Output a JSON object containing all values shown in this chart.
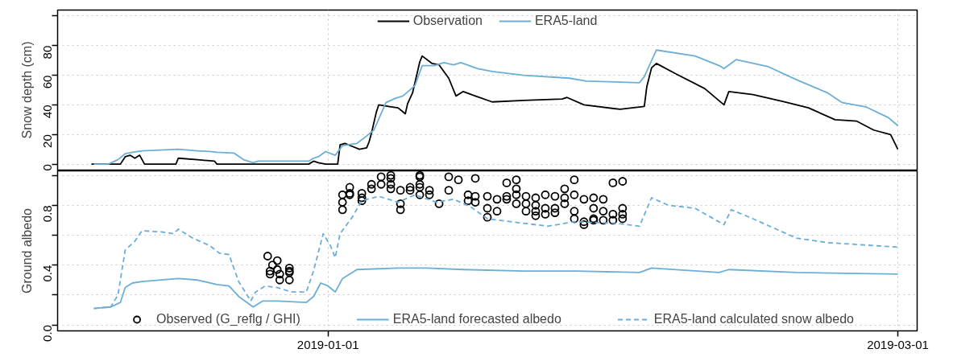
{
  "chart_data": [
    {
      "type": "line",
      "ylabel": "Snow depth (cm)",
      "xlim": [
        "2018-12-04",
        "2019-03-03"
      ],
      "xticks": [
        {
          "value": "2019-01-01",
          "label": null
        },
        {
          "value": "2019-03-01",
          "label": null
        }
      ],
      "ylim": [
        -4,
        104
      ],
      "yticks": [
        0,
        20,
        40,
        60,
        80,
        {
          "value": 100,
          "label": null
        }
      ],
      "grid": true,
      "legend": "top",
      "tick_labels": "y",
      "series": [
        {
          "name": "Observation",
          "color": "#000000",
          "x": [
            "2018-12-07T12:00",
            "2018-12-10T12:00",
            "2018-12-11",
            "2018-12-11T12:00",
            "2018-12-12",
            "2018-12-12T12:00",
            "2018-12-12T18:00",
            "2018-12-13",
            "2018-12-16T06:00",
            "2018-12-16T12:00",
            "2018-12-18T12:00",
            "2018-12-20T06:00",
            "2018-12-20T12:00",
            "2018-12-30",
            "2018-12-30T12:00",
            "2018-12-31",
            "2018-12-31T18:00",
            "2019-01-02",
            "2019-01-02T06:00",
            "2019-01-02T18:00",
            "2019-01-03T12:00",
            "2019-01-04T06:00",
            "2019-01-05",
            "2019-01-05T06:00",
            "2019-01-05T12:00",
            "2019-01-06",
            "2019-01-06T06:00",
            "2019-01-07T06:00",
            "2019-01-08T06:00",
            "2019-01-09",
            "2019-01-09T06:00",
            "2019-01-09T18:00",
            "2019-01-10T12:00",
            "2019-01-10T18:00",
            "2019-01-11T18:00",
            "2019-01-12T12:00",
            "2019-01-13T12:00",
            "2019-01-14T06:00",
            "2019-01-15",
            "2019-01-16T06:00",
            "2019-01-18",
            "2019-01-21T06:00",
            "2019-01-25T06:00",
            "2019-01-25T18:00",
            "2019-01-27T12:00",
            "2019-01-31T06:00",
            "2019-02-02T18:00",
            "2019-02-03",
            "2019-02-03T12:00",
            "2019-02-04",
            "2019-02-06",
            "2019-02-09",
            "2019-02-11",
            "2019-02-11T12:00",
            "2019-02-14",
            "2019-02-17T06:00",
            "2019-02-19T18:00",
            "2019-02-22T12:00",
            "2019-02-24T18:00",
            "2019-02-26T12:00",
            "2019-02-28T06:00",
            "2019-03-01"
          ],
          "values": [
            0,
            0,
            5,
            6,
            4,
            6,
            3,
            0,
            0,
            4,
            3,
            2,
            0,
            0,
            2,
            1,
            0,
            0,
            13,
            14,
            12,
            10,
            11,
            15,
            21,
            35,
            40,
            39,
            38,
            34,
            41,
            48,
            69,
            73,
            68,
            67,
            58,
            46,
            49,
            46,
            42,
            43,
            44,
            45,
            40,
            37,
            39,
            52,
            65,
            68,
            61,
            51,
            40,
            49,
            47,
            42,
            38,
            30,
            29,
            23,
            20,
            10
          ]
        },
        {
          "name": "ERA5-land",
          "color": "#6baed6",
          "x": [
            "2018-12-07T18:00",
            "2018-12-09T06:00",
            "2018-12-10T06:00",
            "2018-12-11",
            "2018-12-11T18:00",
            "2018-12-12T18:00",
            "2018-12-16T12:00",
            "2018-12-18T12:00",
            "2018-12-19T18:00",
            "2018-12-20T12:00",
            "2018-12-22T06:00",
            "2018-12-23T06:00",
            "2018-12-24T06:00",
            "2018-12-24T18:00",
            "2018-12-26T18:00",
            "2018-12-30",
            "2018-12-30T12:00",
            "2018-12-31",
            "2018-12-31T18:00",
            "2019-01-01T18:00",
            "2019-01-02T12:00",
            "2019-01-04",
            "2019-01-05",
            "2019-01-05T18:00",
            "2019-01-07",
            "2019-01-08",
            "2019-01-08T18:00",
            "2019-01-10",
            "2019-01-10T18:00",
            "2019-01-12",
            "2019-01-13",
            "2019-01-14",
            "2019-01-14T18:00",
            "2019-01-16T12:00",
            "2019-01-18",
            "2019-01-21T06:00",
            "2019-01-26",
            "2019-01-27T18:00",
            "2019-02-02T06:00",
            "2019-02-02T18:00",
            "2019-02-04",
            "2019-02-08",
            "2019-02-10T12:00",
            "2019-02-11",
            "2019-02-12T06:00",
            "2019-02-15T12:00",
            "2019-02-18T12:00",
            "2019-02-21T18:00",
            "2019-02-23T06:00",
            "2019-02-25T18:00",
            "2019-02-28",
            "2019-03-01"
          ],
          "values": [
            0,
            0,
            3,
            7,
            8,
            9,
            10,
            9,
            8.5,
            8,
            7.5,
            3,
            1,
            2,
            2,
            2,
            4,
            5,
            8.5,
            6,
            12.5,
            14,
            19,
            23,
            41.5,
            44.5,
            46,
            53,
            66.5,
            66.5,
            68.5,
            67,
            68.5,
            64.5,
            62.5,
            60,
            58,
            56,
            55,
            59,
            77,
            73,
            66.5,
            64.5,
            70.5,
            66,
            57,
            48,
            41.5,
            38.5,
            31.5,
            26
          ]
        }
      ]
    },
    {
      "type": "line",
      "ylabel": "Ground albedo",
      "xlim": [
        "2018-12-04",
        "2019-03-03"
      ],
      "xticks": [
        "2019-01-01",
        "2019-03-01"
      ],
      "ylim": [
        -0.04,
        1.03
      ],
      "yticks": [
        {
          "value": 0,
          "label": "0.0"
        },
        {
          "value": 0.2,
          "label": null
        },
        {
          "value": 0.4,
          "label": "0.4"
        },
        {
          "value": 0.6,
          "label": null
        },
        {
          "value": 0.8,
          "label": "0.8"
        },
        {
          "value": 1.0,
          "label": null
        }
      ],
      "grid": true,
      "legend": "bottom",
      "series": [
        {
          "name": "Observed (G_reflg / GHI)",
          "type": "scatter",
          "marker": "circle",
          "color": "#000000",
          "x": [
            "2018-12-25T18:00",
            "2018-12-26T06:00",
            "2018-12-26",
            "2018-12-26",
            "2018-12-26T18:00",
            "2018-12-26T18:00",
            "2018-12-27",
            "2018-12-27",
            "2018-12-28",
            "2018-12-28",
            "2018-12-28",
            "2018-12-28",
            "2019-01-02T12:00",
            "2019-01-02T12:00",
            "2019-01-02T12:00",
            "2019-01-03T06:00",
            "2019-01-03T06:00",
            "2019-01-03T06:00",
            "2019-01-04T12:00",
            "2019-01-04T12:00",
            "2019-01-04T12:00",
            "2019-01-05T12:00",
            "2019-01-05T12:00",
            "2019-01-06T12:00",
            "2019-01-06T12:00",
            "2019-01-07T12:00",
            "2019-01-07T12:00",
            "2019-01-07T12:00",
            "2019-01-07T12:00",
            "2019-01-08T12:00",
            "2019-01-08T12:00",
            "2019-01-08T12:00",
            "2019-01-09T12:00",
            "2019-01-09T12:00",
            "2019-01-10T12:00",
            "2019-01-10T12:00",
            "2019-01-10T12:00",
            "2019-01-10T12:00",
            "2019-01-10T12:00",
            "2019-01-11T12:00",
            "2019-01-11T12:00",
            "2019-01-12T12:00",
            "2019-01-13T12:00",
            "2019-01-13T12:00",
            "2019-01-14T12:00",
            "2019-01-15T12:00",
            "2019-01-15T12:00",
            "2019-01-16T06:00",
            "2019-01-16T06:00",
            "2019-01-16T06:00",
            "2019-01-17T12:00",
            "2019-01-17T12:00",
            "2019-01-17T12:00",
            "2019-01-18T12:00",
            "2019-01-18T12:00",
            "2019-01-19T12:00",
            "2019-01-19T12:00",
            "2019-01-19T12:00",
            "2019-01-20T12:00",
            "2019-01-20T12:00",
            "2019-01-20T12:00",
            "2019-01-20T12:00",
            "2019-01-21T12:00",
            "2019-01-21T12:00",
            "2019-01-21T12:00",
            "2019-01-22T12:00",
            "2019-01-22T12:00",
            "2019-01-22T12:00",
            "2019-01-22T12:00",
            "2019-01-23T12:00",
            "2019-01-23T12:00",
            "2019-01-23T12:00",
            "2019-01-24T12:00",
            "2019-01-24T12:00",
            "2019-01-24T12:00",
            "2019-01-25T12:00",
            "2019-01-25T12:00",
            "2019-01-25T12:00",
            "2019-01-26T12:00",
            "2019-01-26T12:00",
            "2019-01-26T12:00",
            "2019-01-26T12:00",
            "2019-01-27T12:00",
            "2019-01-27T12:00",
            "2019-01-27T12:00",
            "2019-01-28T12:00",
            "2019-01-28T12:00",
            "2019-01-28T12:00",
            "2019-01-28T12:00",
            "2019-01-29T12:00",
            "2019-01-29T12:00",
            "2019-01-29T12:00",
            "2019-01-30T12:00",
            "2019-01-30T12:00",
            "2019-01-30T12:00",
            "2019-01-31T12:00",
            "2019-01-31T12:00",
            "2019-01-31T12:00",
            "2019-01-31T12:00"
          ],
          "values": [
            0.46,
            0.4,
            0.36,
            0.34,
            0.43,
            0.37,
            0.34,
            0.3,
            0.38,
            0.36,
            0.35,
            0.3,
            0.87,
            0.82,
            0.77,
            0.92,
            0.87,
            0.88,
            0.88,
            0.85,
            0.83,
            0.94,
            0.91,
            0.99,
            0.94,
            1.0,
            0.98,
            0.94,
            0.91,
            0.9,
            0.81,
            0.77,
            0.92,
            0.9,
            1.0,
            0.99,
            0.94,
            0.92,
            0.87,
            0.9,
            0.87,
            0.81,
            0.99,
            0.9,
            0.97,
            0.87,
            0.83,
            0.98,
            0.86,
            0.82,
            0.86,
            0.78,
            0.72,
            0.84,
            0.76,
            0.95,
            0.86,
            0.84,
            0.97,
            0.91,
            0.87,
            0.81,
            0.86,
            0.81,
            0.76,
            0.85,
            0.8,
            0.76,
            0.73,
            0.87,
            0.78,
            0.74,
            0.86,
            0.78,
            0.75,
            0.91,
            0.85,
            0.81,
            0.97,
            0.87,
            0.76,
            0.71,
            0.84,
            0.69,
            0.67,
            0.85,
            0.78,
            0.71,
            0.7,
            0.84,
            0.76,
            0.7,
            0.95,
            0.74,
            0.7,
            0.96,
            0.78,
            0.74,
            0.71
          ]
        },
        {
          "name": "ERA5-land forecasted albedo",
          "color": "#6baed6",
          "line_style": "solid",
          "x": [
            "2018-12-07T18:00",
            "2018-12-09T12:00",
            "2018-12-10T12:00",
            "2018-12-11",
            "2018-12-11T18:00",
            "2018-12-12T18:00",
            "2018-12-16T12:00",
            "2018-12-18T12:00",
            "2018-12-20T12:00",
            "2018-12-21T18:00",
            "2018-12-22T18:00",
            "2018-12-24T06:00",
            "2018-12-25T06:00",
            "2018-12-26T18:00",
            "2018-12-29T18:00",
            "2018-12-30T12:00",
            "2018-12-31T06:00",
            "2019-01-01",
            "2019-01-01T18:00",
            "2019-01-02T12:00",
            "2019-01-04",
            "2019-01-08T06:00",
            "2019-01-11T06:00",
            "2019-01-15",
            "2019-01-21T06:00",
            "2019-01-26T18:00",
            "2019-02-02T06:00",
            "2019-02-03T12:00",
            "2019-02-10T12:00",
            "2019-02-11T12:00",
            "2019-02-18T12:00",
            "2019-03-01"
          ],
          "values": [
            0.11,
            0.12,
            0.15,
            0.25,
            0.28,
            0.29,
            0.31,
            0.3,
            0.27,
            0.26,
            0.19,
            0.12,
            0.16,
            0.16,
            0.15,
            0.19,
            0.28,
            0.26,
            0.22,
            0.31,
            0.37,
            0.38,
            0.38,
            0.37,
            0.36,
            0.36,
            0.35,
            0.38,
            0.35,
            0.37,
            0.35,
            0.34
          ]
        },
        {
          "name": "ERA5-land calculated snow albedo",
          "color": "#6baed6",
          "line_style": "dashed",
          "x": [
            "2018-12-07T18:00",
            "2018-12-09T12:00",
            "2018-12-10T06:00",
            "2018-12-11",
            "2018-12-12",
            "2018-12-12T18:00",
            "2018-12-15",
            "2018-12-16",
            "2018-12-16T12:00",
            "2018-12-18",
            "2018-12-19T18:00",
            "2018-12-20T18:00",
            "2018-12-21T18:00",
            "2018-12-22T18:00",
            "2018-12-24",
            "2018-12-24T12:00",
            "2018-12-25T12:00",
            "2018-12-26T18:00",
            "2018-12-28T06:00",
            "2018-12-29T18:00",
            "2018-12-30T12:00",
            "2018-12-31T12:00",
            "2019-01-01T06:00",
            "2019-01-01T18:00",
            "2019-01-02T06:00",
            "2019-01-03T12:00",
            "2019-01-04T12:00",
            "2019-01-06T06:00",
            "2019-01-08T06:00",
            "2019-01-10",
            "2019-01-12T06:00",
            "2019-01-14",
            "2019-01-15T18:00",
            "2019-01-17T12:00",
            "2019-01-21T06:00",
            "2019-01-23T18:00",
            "2019-01-26T12:00",
            "2019-01-30T18:00",
            "2019-02-02T06:00",
            "2019-02-03T12:00",
            "2019-02-05T06:00",
            "2019-02-08",
            "2019-02-11",
            "2019-02-11T18:00",
            "2019-02-14",
            "2019-02-18T12:00",
            "2019-02-21T18:00",
            "2019-03-01"
          ],
          "values": [
            0.11,
            0.12,
            0.2,
            0.5,
            0.56,
            0.63,
            0.62,
            0.61,
            0.64,
            0.58,
            0.53,
            0.48,
            0.47,
            0.29,
            0.16,
            0.22,
            0.26,
            0.25,
            0.22,
            0.22,
            0.36,
            0.61,
            0.53,
            0.45,
            0.61,
            0.72,
            0.83,
            0.86,
            0.82,
            0.87,
            0.82,
            0.84,
            0.79,
            0.71,
            0.68,
            0.66,
            0.69,
            0.68,
            0.66,
            0.85,
            0.8,
            0.78,
            0.67,
            0.77,
            0.71,
            0.58,
            0.55,
            0.52
          ]
        }
      ]
    }
  ]
}
